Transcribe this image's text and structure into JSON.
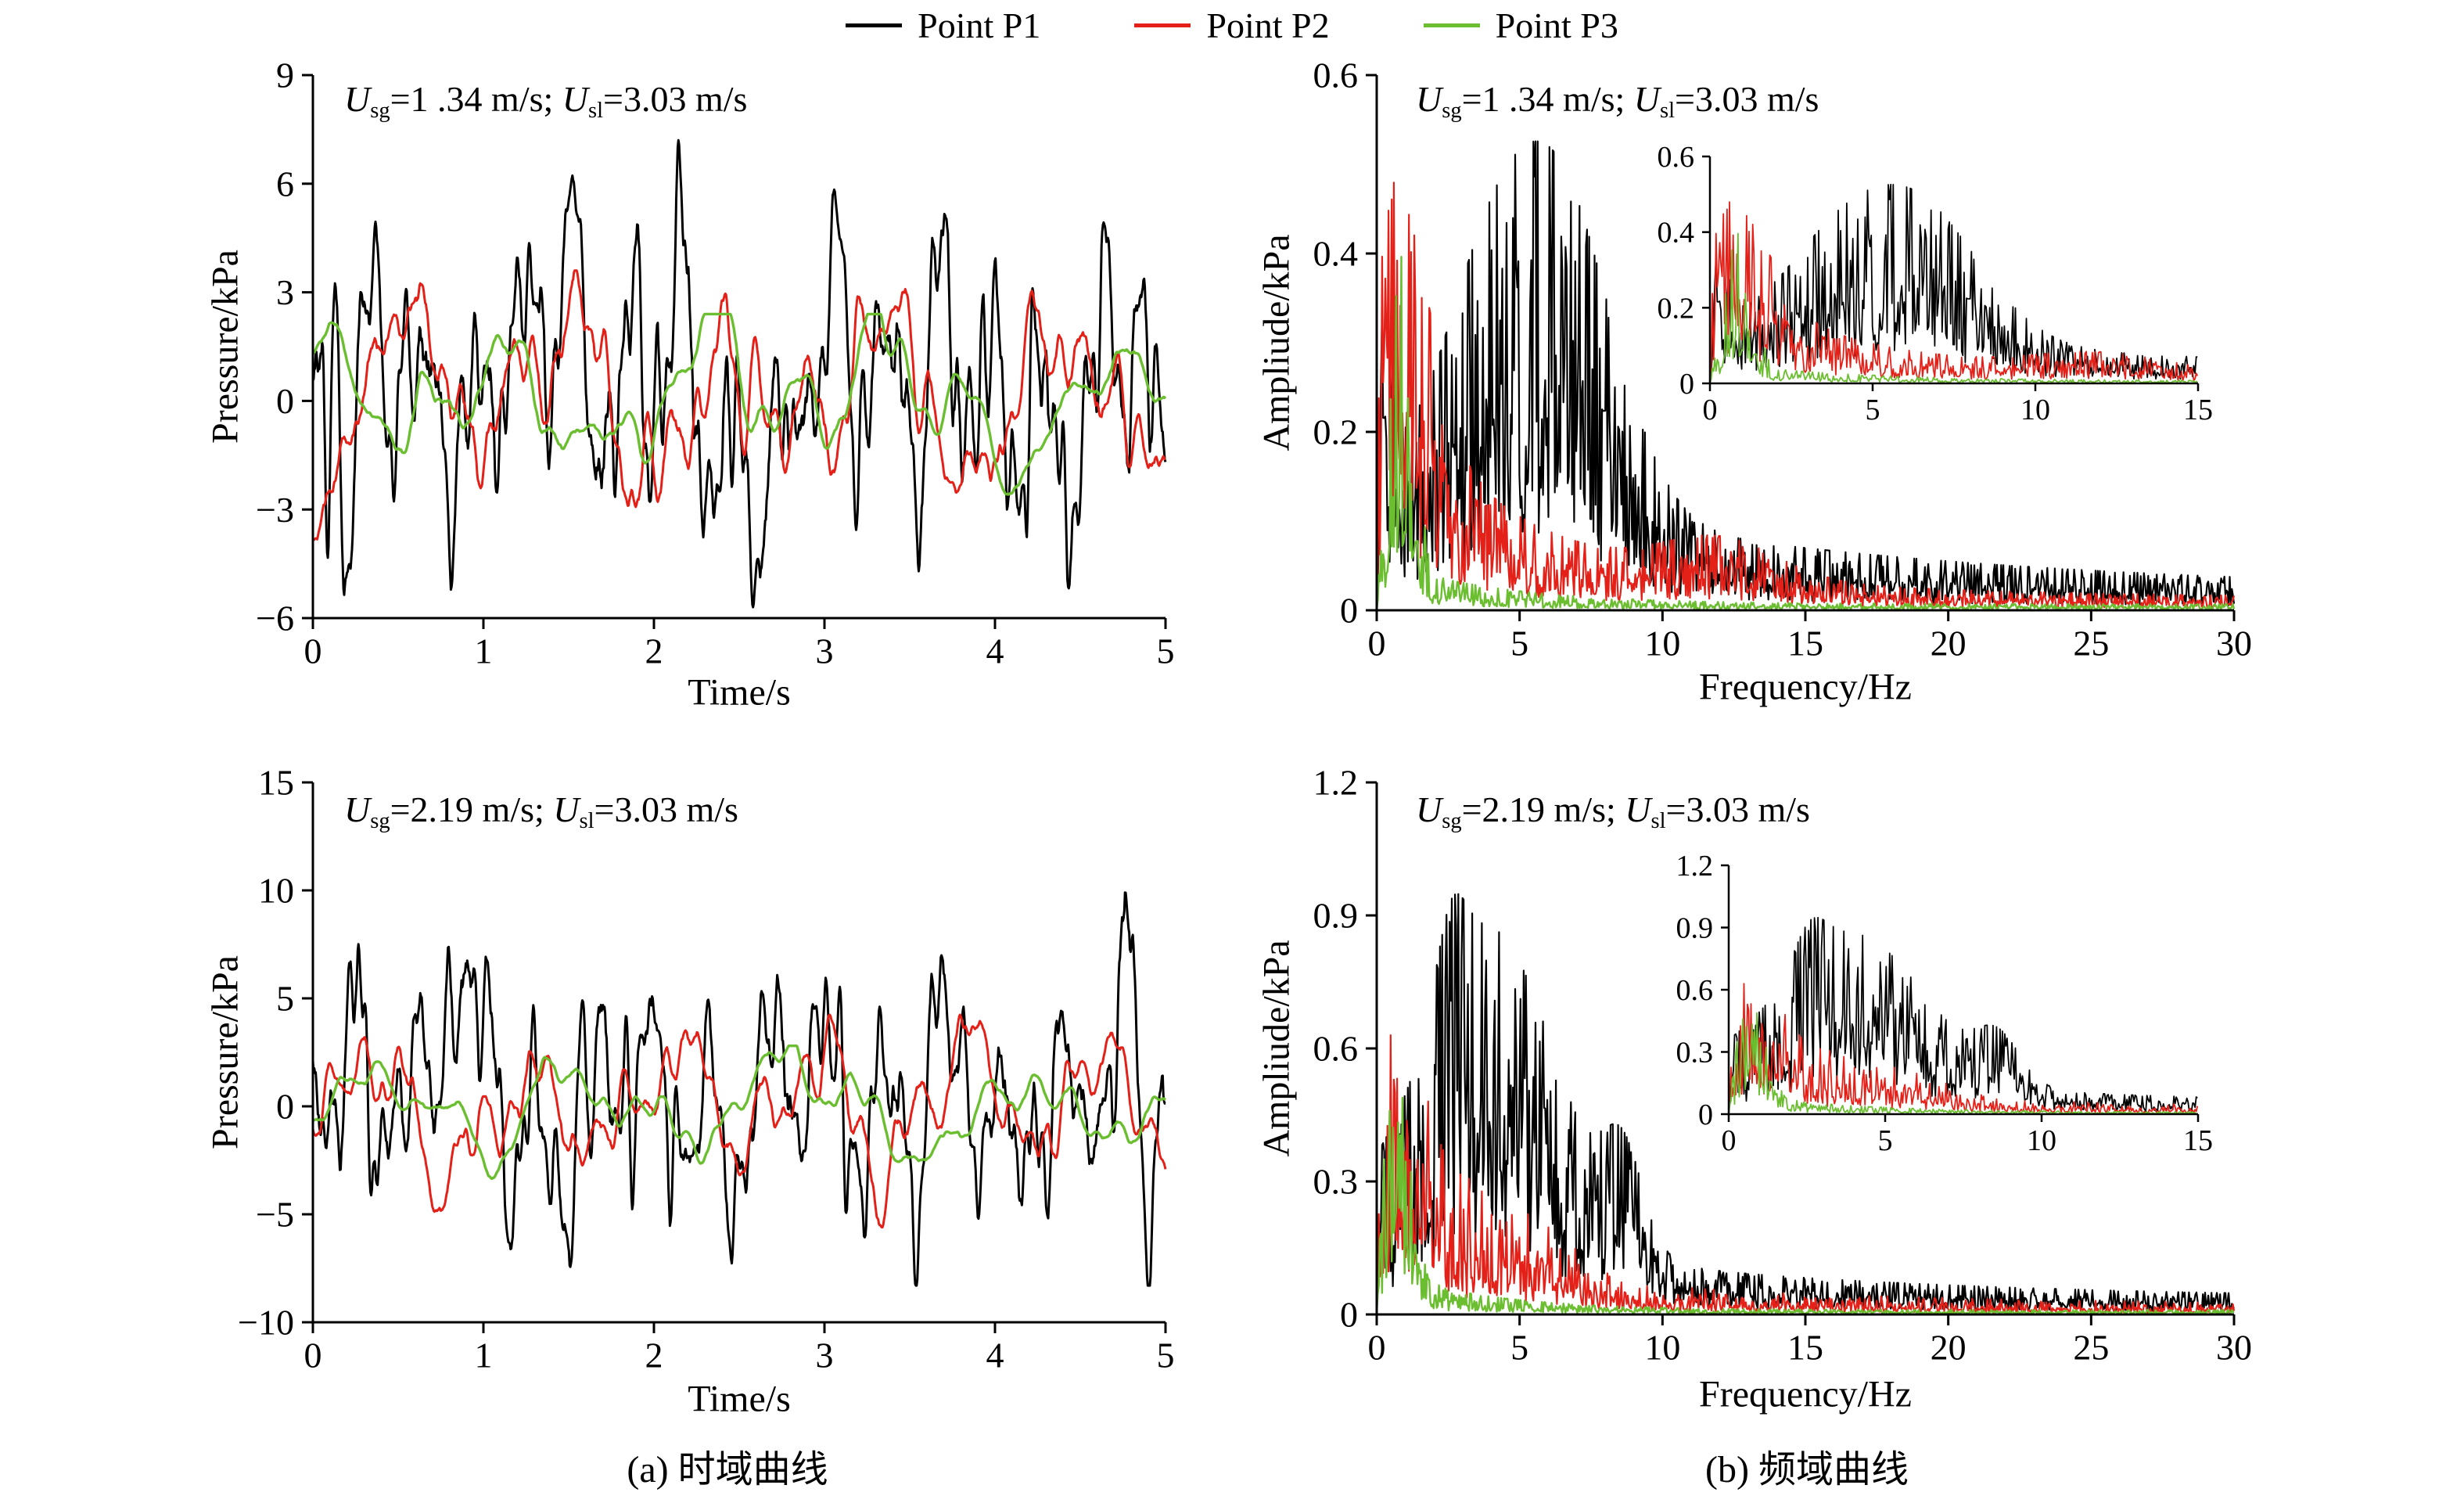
{
  "legend": {
    "items": [
      {
        "label": "Point P1",
        "color": "#000000"
      },
      {
        "label": "Point P2",
        "color": "#e32119"
      },
      {
        "label": "Point P3",
        "color": "#6cbe31"
      }
    ]
  },
  "captions": {
    "a": "(a) 时域曲线",
    "b": "(b) 频域曲线"
  },
  "chart_data": [
    {
      "id": "time-domain-a1",
      "type": "line",
      "xlabel": "Time/s",
      "ylabel": "Pressure/kPa",
      "xlim": [
        0,
        5
      ],
      "ylim": [
        -6,
        9
      ],
      "xticks": [
        0,
        1,
        2,
        3,
        4,
        5
      ],
      "yticks": [
        9,
        6,
        3,
        0,
        -3,
        -6
      ],
      "annotation": {
        "u1": "U",
        "s1": "sg",
        "v1": "=1 .34 m/s; ",
        "u2": "U",
        "s2": "sl",
        "v2": "=3.03 m/s"
      },
      "series": [
        {
          "name": "Point P1",
          "color": "#000000",
          "model": "time",
          "seed": 101,
          "mean": 0.4,
          "components": [
            [
              3.3,
              2.1
            ],
            [
              1.15,
              1.1
            ],
            [
              5.1,
              0.9
            ],
            [
              0.45,
              0.7
            ]
          ],
          "noise": 1.5,
          "smooth": 3,
          "clip": [
            -5.7,
            8.1
          ]
        },
        {
          "name": "Point P2",
          "color": "#e32119",
          "model": "time",
          "seed": 102,
          "mean": 0.2,
          "components": [
            [
              1.05,
              1.5
            ],
            [
              2.3,
              0.8
            ],
            [
              0.5,
              0.6
            ]
          ],
          "noise": 0.9,
          "smooth": 6,
          "clip": [
            -4.3,
            3.6
          ]
        },
        {
          "name": "Point P3",
          "color": "#6cbe31",
          "model": "time",
          "seed": 103,
          "mean": 0.1,
          "components": [
            [
              0.85,
              1.1
            ],
            [
              1.9,
              0.4
            ],
            [
              0.4,
              0.5
            ]
          ],
          "noise": 0.6,
          "smooth": 10,
          "clip": [
            -3.2,
            2.4
          ]
        }
      ]
    },
    {
      "id": "frequency-domain-a1",
      "type": "line",
      "xlabel": "Frequency/Hz",
      "ylabel": "Ampliude/kPa",
      "xlim": [
        0,
        30
      ],
      "ylim": [
        0,
        0.6
      ],
      "xticks": [
        0,
        5,
        10,
        15,
        20,
        25,
        30
      ],
      "yticks": [
        0.6,
        0.4,
        0.2,
        0
      ],
      "annotation": {
        "u1": "U",
        "s1": "sg",
        "v1": "=1 .34 m/s; ",
        "u2": "U",
        "s2": "sl",
        "v2": "=3.03 m/s"
      },
      "series": [
        {
          "name": "Point P1",
          "color": "#000000",
          "model": "spectrum",
          "seed": 201,
          "base": 0.012,
          "gauss": [
            [
              6.2,
              2.0,
              0.22
            ],
            [
              3.5,
              1.5,
              0.08
            ],
            [
              0.3,
              0.25,
              0.1
            ]
          ],
          "expo": [
            [
              14,
              0.085
            ]
          ],
          "jitter": 0.9,
          "cap": 1.7
        },
        {
          "name": "Point P2",
          "color": "#e32119",
          "model": "spectrum",
          "seed": 202,
          "base": 0.008,
          "gauss": [
            [
              0.8,
              1.1,
              0.13
            ],
            [
              12,
              2.0,
              0.025
            ]
          ],
          "expo": [
            [
              3.2,
              0.12
            ],
            [
              9,
              0.05
            ]
          ],
          "jitter": 0.85,
          "cap": 1.7
        },
        {
          "name": "Point P3",
          "color": "#6cbe31",
          "model": "spectrum",
          "seed": 203,
          "base": 0.004,
          "gauss": [
            [
              0.9,
              0.4,
              0.22
            ]
          ],
          "expo": [
            [
              4,
              0.03
            ]
          ],
          "jitter": 0.8,
          "cap": 1.7
        }
      ],
      "inset": {
        "xlim": [
          0,
          15
        ],
        "ylim": [
          0,
          0.6
        ],
        "xticks": [
          0,
          5,
          10,
          15
        ],
        "yticks": [
          0.6,
          0.4,
          0.2,
          0
        ]
      }
    },
    {
      "id": "time-domain-a2",
      "type": "line",
      "xlabel": "Time/s",
      "ylabel": "Pressure/kPa",
      "xlim": [
        0,
        5
      ],
      "ylim": [
        -10,
        15
      ],
      "xticks": [
        0,
        1,
        2,
        3,
        4,
        5
      ],
      "yticks": [
        15,
        10,
        5,
        0,
        -5,
        -10
      ],
      "annotation": {
        "u1": "U",
        "s1": "sg",
        "v1": "=2.19 m/s; ",
        "u2": "U",
        "s2": "sl",
        "v2": "=3.03 m/s"
      },
      "series": [
        {
          "name": "Point P1",
          "color": "#000000",
          "model": "time",
          "seed": 301,
          "mean": 0.5,
          "components": [
            [
              2.9,
              3.0
            ],
            [
              1.05,
              1.6
            ],
            [
              5.3,
              1.2
            ],
            [
              0.4,
              1.0
            ]
          ],
          "noise": 2.2,
          "smooth": 3,
          "clip": [
            -8.3,
            10.3
          ]
        },
        {
          "name": "Point P2",
          "color": "#e32119",
          "model": "time",
          "seed": 302,
          "mean": 0.0,
          "components": [
            [
              1.15,
              2.1
            ],
            [
              2.4,
              1.0
            ],
            [
              0.5,
              0.8
            ]
          ],
          "noise": 1.1,
          "smooth": 6,
          "clip": [
            -5.6,
            5.2
          ]
        },
        {
          "name": "Point P3",
          "color": "#6cbe31",
          "model": "time",
          "seed": 303,
          "mean": 0.0,
          "components": [
            [
              0.8,
              1.4
            ],
            [
              1.7,
              0.5
            ],
            [
              0.35,
              0.6
            ]
          ],
          "noise": 0.7,
          "smooth": 10,
          "clip": [
            -3.6,
            2.8
          ]
        }
      ]
    },
    {
      "id": "frequency-domain-a2",
      "type": "line",
      "xlabel": "Frequency/Hz",
      "ylabel": "Ampliude/kPa",
      "xlim": [
        0,
        30
      ],
      "ylim": [
        0,
        1.2
      ],
      "xticks": [
        0,
        5,
        10,
        15,
        20,
        25,
        30
      ],
      "yticks": [
        1.2,
        0.9,
        0.6,
        0.3,
        0
      ],
      "annotation": {
        "u1": "U",
        "s1": "sg",
        "v1": "=2.19 m/s; ",
        "u2": "U",
        "s2": "sl",
        "v2": "=3.03 m/s"
      },
      "series": [
        {
          "name": "Point P1",
          "color": "#000000",
          "model": "spectrum",
          "seed": 401,
          "base": 0.02,
          "gauss": [
            [
              4.0,
              2.3,
              0.42
            ],
            [
              2.6,
              0.5,
              0.1
            ],
            [
              8.6,
              0.7,
              0.12
            ]
          ],
          "expo": [
            [
              12,
              0.1
            ]
          ],
          "jitter": 0.9,
          "cap": 1.7
        },
        {
          "name": "Point P2",
          "color": "#e32119",
          "model": "spectrum",
          "seed": 402,
          "base": 0.01,
          "gauss": [
            [
              0.5,
              1.0,
              0.25
            ],
            [
              3.8,
              2.2,
              0.09
            ]
          ],
          "expo": [
            [
              10,
              0.05
            ]
          ],
          "jitter": 0.85,
          "cap": 2.2
        },
        {
          "name": "Point P3",
          "color": "#6cbe31",
          "model": "spectrum",
          "seed": 403,
          "base": 0.006,
          "gauss": [
            [
              0.8,
              0.45,
              0.32
            ]
          ],
          "expo": [
            [
              3.5,
              0.06
            ]
          ],
          "jitter": 0.8,
          "cap": 1.6
        }
      ],
      "inset": {
        "xlim": [
          0,
          15
        ],
        "ylim": [
          0,
          1.2
        ],
        "xticks": [
          0,
          5,
          10,
          15
        ],
        "yticks": [
          1.2,
          0.9,
          0.6,
          0.3,
          0
        ]
      }
    }
  ]
}
